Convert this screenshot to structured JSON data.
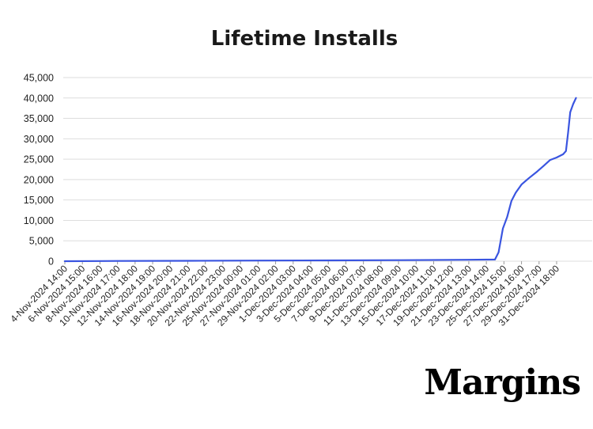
{
  "brand": {
    "logo_text": "Margins"
  },
  "chart_data": {
    "type": "line",
    "title": "Lifetime Installs",
    "xlabel": "",
    "ylabel": "",
    "ylim": [
      0,
      45000
    ],
    "yticks": [
      0,
      5000,
      10000,
      15000,
      20000,
      25000,
      30000,
      35000,
      40000,
      45000
    ],
    "ytick_labels": [
      "0",
      "5,000",
      "10,000",
      "15,000",
      "20,000",
      "25,000",
      "30,000",
      "35,000",
      "40,000",
      "45,000"
    ],
    "grid": "horizontal",
    "xtick_labels": [
      "4-Nov-2024 14:00",
      "6-Nov-2024 15:00",
      "8-Nov-2024 16:00",
      "10-Nov-2024 17:00",
      "12-Nov-2024 18:00",
      "14-Nov-2024 19:00",
      "16-Nov-2024 20:00",
      "18-Nov-2024 21:00",
      "20-Nov-2024 22:00",
      "22-Nov-2024 23:00",
      "25-Nov-2024 00:00",
      "27-Nov-2024 01:00",
      "29-Nov-2024 02:00",
      "1-Dec-2024 03:00",
      "3-Dec-2024 04:00",
      "5-Dec-2024 05:00",
      "7-Dec-2024 06:00",
      "9-Dec-2024 07:00",
      "11-Dec-2024 08:00",
      "13-Dec-2024 09:00",
      "15-Dec-2024 10:00",
      "17-Dec-2024 11:00",
      "19-Dec-2024 12:00",
      "21-Dec-2024 13:00",
      "23-Dec-2024 14:00",
      "25-Dec-2024 15:00",
      "27-Dec-2024 16:00",
      "29-Dec-2024 17:00",
      "31-Dec-2024 18:00"
    ],
    "series": [
      {
        "color": "#3a55e0",
        "points": [
          {
            "x": "4-Nov-2024 14:00",
            "y": 0
          },
          {
            "x": "10-Nov-2024 17:00",
            "y": 60
          },
          {
            "x": "18-Nov-2024 21:00",
            "y": 100
          },
          {
            "x": "27-Nov-2024 01:00",
            "y": 150
          },
          {
            "x": "5-Dec-2024 05:00",
            "y": 200
          },
          {
            "x": "13-Dec-2024 09:00",
            "y": 260
          },
          {
            "x": "21-Dec-2024 13:00",
            "y": 350
          },
          {
            "x": "24-Dec-2024 14:00",
            "y": 400
          },
          {
            "x": "25-Dec-2024 00:00",
            "y": 2200
          },
          {
            "x": "25-Dec-2024 12:00",
            "y": 8000
          },
          {
            "x": "26-Dec-2024 00:00",
            "y": 10800
          },
          {
            "x": "26-Dec-2024 12:00",
            "y": 14800
          },
          {
            "x": "27-Dec-2024 00:00",
            "y": 16800
          },
          {
            "x": "27-Dec-2024 16:00",
            "y": 18800
          },
          {
            "x": "28-Dec-2024 12:00",
            "y": 20300
          },
          {
            "x": "29-Dec-2024 12:00",
            "y": 22000
          },
          {
            "x": "30-Dec-2024 06:00",
            "y": 23400
          },
          {
            "x": "31-Dec-2024 00:00",
            "y": 24800
          },
          {
            "x": "31-Dec-2024 18:00",
            "y": 25400
          },
          {
            "x": "1-Jan-2025 12:00",
            "y": 26200
          },
          {
            "x": "1-Jan-2025 20:00",
            "y": 27000
          },
          {
            "x": "2-Jan-2025 02:00",
            "y": 31500
          },
          {
            "x": "2-Jan-2025 08:00",
            "y": 36500
          },
          {
            "x": "2-Jan-2025 16:00",
            "y": 38500
          },
          {
            "x": "3-Jan-2025 00:00",
            "y": 40000
          }
        ]
      }
    ]
  }
}
